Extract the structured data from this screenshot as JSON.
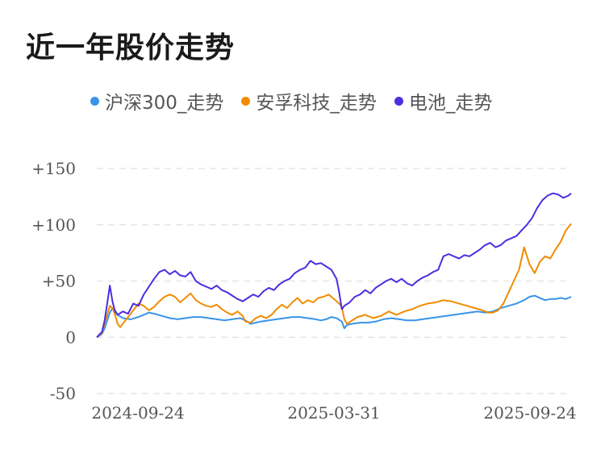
{
  "title": "近一年股价走势",
  "chart_data": {
    "type": "line",
    "y_ticks": [
      "+150",
      "+100",
      "+50",
      "0",
      "-50"
    ],
    "y_tick_values": [
      150,
      100,
      50,
      0,
      -50
    ],
    "ylim": [
      -50,
      150
    ],
    "x_ticks": [
      "2024-09-24",
      "2025-03-31",
      "2025-09-24"
    ],
    "grid": "horizontal-dashed",
    "legend": "top",
    "series": [
      {
        "name": "沪深300_走势",
        "color": "#3a94e8",
        "points": [
          [
            0,
            0
          ],
          [
            2,
            3
          ],
          [
            3,
            8
          ],
          [
            4,
            15
          ],
          [
            5,
            22
          ],
          [
            6,
            26
          ],
          [
            7,
            24
          ],
          [
            8,
            20
          ],
          [
            10,
            17
          ],
          [
            13,
            16
          ],
          [
            16,
            18
          ],
          [
            18,
            20
          ],
          [
            20,
            22
          ],
          [
            22,
            21
          ],
          [
            25,
            19
          ],
          [
            28,
            17
          ],
          [
            31,
            16
          ],
          [
            34,
            17
          ],
          [
            37,
            18
          ],
          [
            40,
            18
          ],
          [
            43,
            17
          ],
          [
            46,
            16
          ],
          [
            49,
            15
          ],
          [
            52,
            16
          ],
          [
            55,
            17
          ],
          [
            57,
            15
          ],
          [
            59,
            12
          ],
          [
            61,
            13
          ],
          [
            63,
            14
          ],
          [
            66,
            15
          ],
          [
            69,
            16
          ],
          [
            72,
            17
          ],
          [
            75,
            18
          ],
          [
            78,
            18
          ],
          [
            81,
            17
          ],
          [
            84,
            16
          ],
          [
            86,
            15
          ],
          [
            88,
            16
          ],
          [
            90,
            18
          ],
          [
            92,
            17
          ],
          [
            94,
            14
          ],
          [
            95,
            8
          ],
          [
            96,
            11
          ],
          [
            98,
            12
          ],
          [
            101,
            13
          ],
          [
            104,
            13
          ],
          [
            107,
            14
          ],
          [
            110,
            16
          ],
          [
            113,
            17
          ],
          [
            116,
            16
          ],
          [
            119,
            15
          ],
          [
            122,
            15
          ],
          [
            125,
            16
          ],
          [
            128,
            17
          ],
          [
            131,
            18
          ],
          [
            134,
            19
          ],
          [
            137,
            20
          ],
          [
            140,
            21
          ],
          [
            143,
            22
          ],
          [
            146,
            23
          ],
          [
            149,
            22
          ],
          [
            152,
            23
          ],
          [
            155,
            26
          ],
          [
            158,
            28
          ],
          [
            161,
            30
          ],
          [
            164,
            33
          ],
          [
            166,
            36
          ],
          [
            168,
            37
          ],
          [
            170,
            35
          ],
          [
            172,
            33
          ],
          [
            174,
            34
          ],
          [
            176,
            34
          ],
          [
            178,
            35
          ],
          [
            180,
            34
          ],
          [
            182,
            36
          ]
        ]
      },
      {
        "name": "安孚科技_走势",
        "color": "#f08c00",
        "points": [
          [
            0,
            0
          ],
          [
            2,
            4
          ],
          [
            3,
            12
          ],
          [
            4,
            20
          ],
          [
            5,
            28
          ],
          [
            6,
            26
          ],
          [
            7,
            20
          ],
          [
            8,
            12
          ],
          [
            9,
            9
          ],
          [
            10,
            12
          ],
          [
            12,
            18
          ],
          [
            14,
            24
          ],
          [
            16,
            30
          ],
          [
            18,
            28
          ],
          [
            20,
            24
          ],
          [
            22,
            27
          ],
          [
            24,
            32
          ],
          [
            26,
            36
          ],
          [
            28,
            38
          ],
          [
            30,
            36
          ],
          [
            32,
            31
          ],
          [
            34,
            35
          ],
          [
            36,
            39
          ],
          [
            38,
            33
          ],
          [
            40,
            30
          ],
          [
            42,
            28
          ],
          [
            44,
            27
          ],
          [
            46,
            29
          ],
          [
            48,
            25
          ],
          [
            50,
            22
          ],
          [
            52,
            20
          ],
          [
            54,
            23
          ],
          [
            56,
            19
          ],
          [
            57,
            14
          ],
          [
            59,
            13
          ],
          [
            61,
            17
          ],
          [
            63,
            19
          ],
          [
            65,
            17
          ],
          [
            67,
            20
          ],
          [
            69,
            25
          ],
          [
            71,
            29
          ],
          [
            73,
            26
          ],
          [
            75,
            31
          ],
          [
            77,
            35
          ],
          [
            79,
            30
          ],
          [
            81,
            33
          ],
          [
            83,
            31
          ],
          [
            85,
            35
          ],
          [
            87,
            36
          ],
          [
            89,
            38
          ],
          [
            91,
            34
          ],
          [
            93,
            30
          ],
          [
            94,
            27
          ],
          [
            95,
            16
          ],
          [
            96,
            12
          ],
          [
            98,
            15
          ],
          [
            100,
            18
          ],
          [
            103,
            20
          ],
          [
            106,
            17
          ],
          [
            109,
            19
          ],
          [
            112,
            23
          ],
          [
            115,
            20
          ],
          [
            118,
            23
          ],
          [
            121,
            25
          ],
          [
            124,
            28
          ],
          [
            127,
            30
          ],
          [
            130,
            31
          ],
          [
            133,
            33
          ],
          [
            136,
            32
          ],
          [
            139,
            30
          ],
          [
            142,
            28
          ],
          [
            145,
            26
          ],
          [
            148,
            24
          ],
          [
            150,
            22
          ],
          [
            152,
            22
          ],
          [
            154,
            24
          ],
          [
            156,
            30
          ],
          [
            158,
            40
          ],
          [
            160,
            50
          ],
          [
            162,
            60
          ],
          [
            164,
            80
          ],
          [
            166,
            65
          ],
          [
            168,
            57
          ],
          [
            170,
            67
          ],
          [
            172,
            72
          ],
          [
            174,
            70
          ],
          [
            176,
            78
          ],
          [
            178,
            85
          ],
          [
            180,
            95
          ],
          [
            182,
            101
          ]
        ]
      },
      {
        "name": "电池_走势",
        "color": "#4d2de0",
        "points": [
          [
            0,
            0
          ],
          [
            2,
            5
          ],
          [
            3,
            15
          ],
          [
            4,
            30
          ],
          [
            5,
            46
          ],
          [
            6,
            32
          ],
          [
            7,
            23
          ],
          [
            8,
            20
          ],
          [
            10,
            23
          ],
          [
            12,
            21
          ],
          [
            14,
            30
          ],
          [
            16,
            28
          ],
          [
            18,
            38
          ],
          [
            20,
            45
          ],
          [
            22,
            52
          ],
          [
            24,
            58
          ],
          [
            26,
            60
          ],
          [
            28,
            56
          ],
          [
            30,
            59
          ],
          [
            32,
            55
          ],
          [
            34,
            54
          ],
          [
            36,
            58
          ],
          [
            38,
            50
          ],
          [
            40,
            47
          ],
          [
            42,
            45
          ],
          [
            44,
            43
          ],
          [
            46,
            46
          ],
          [
            48,
            42
          ],
          [
            50,
            40
          ],
          [
            52,
            37
          ],
          [
            54,
            34
          ],
          [
            56,
            32
          ],
          [
            58,
            35
          ],
          [
            60,
            38
          ],
          [
            62,
            36
          ],
          [
            64,
            41
          ],
          [
            66,
            44
          ],
          [
            68,
            42
          ],
          [
            70,
            47
          ],
          [
            72,
            50
          ],
          [
            74,
            52
          ],
          [
            76,
            57
          ],
          [
            78,
            60
          ],
          [
            80,
            62
          ],
          [
            82,
            68
          ],
          [
            84,
            65
          ],
          [
            86,
            66
          ],
          [
            88,
            63
          ],
          [
            90,
            60
          ],
          [
            92,
            52
          ],
          [
            93,
            40
          ],
          [
            94,
            25
          ],
          [
            95,
            28
          ],
          [
            97,
            31
          ],
          [
            99,
            36
          ],
          [
            101,
            38
          ],
          [
            103,
            42
          ],
          [
            105,
            39
          ],
          [
            107,
            44
          ],
          [
            109,
            47
          ],
          [
            111,
            50
          ],
          [
            113,
            52
          ],
          [
            115,
            49
          ],
          [
            117,
            52
          ],
          [
            119,
            48
          ],
          [
            121,
            46
          ],
          [
            123,
            50
          ],
          [
            125,
            53
          ],
          [
            127,
            55
          ],
          [
            129,
            58
          ],
          [
            131,
            60
          ],
          [
            133,
            72
          ],
          [
            135,
            74
          ],
          [
            137,
            72
          ],
          [
            139,
            70
          ],
          [
            141,
            73
          ],
          [
            143,
            72
          ],
          [
            145,
            75
          ],
          [
            147,
            78
          ],
          [
            149,
            82
          ],
          [
            151,
            84
          ],
          [
            153,
            80
          ],
          [
            155,
            82
          ],
          [
            157,
            86
          ],
          [
            159,
            88
          ],
          [
            161,
            90
          ],
          [
            163,
            95
          ],
          [
            165,
            100
          ],
          [
            167,
            106
          ],
          [
            169,
            115
          ],
          [
            171,
            122
          ],
          [
            173,
            126
          ],
          [
            175,
            128
          ],
          [
            177,
            127
          ],
          [
            179,
            124
          ],
          [
            181,
            126
          ],
          [
            182,
            128
          ]
        ]
      }
    ]
  }
}
